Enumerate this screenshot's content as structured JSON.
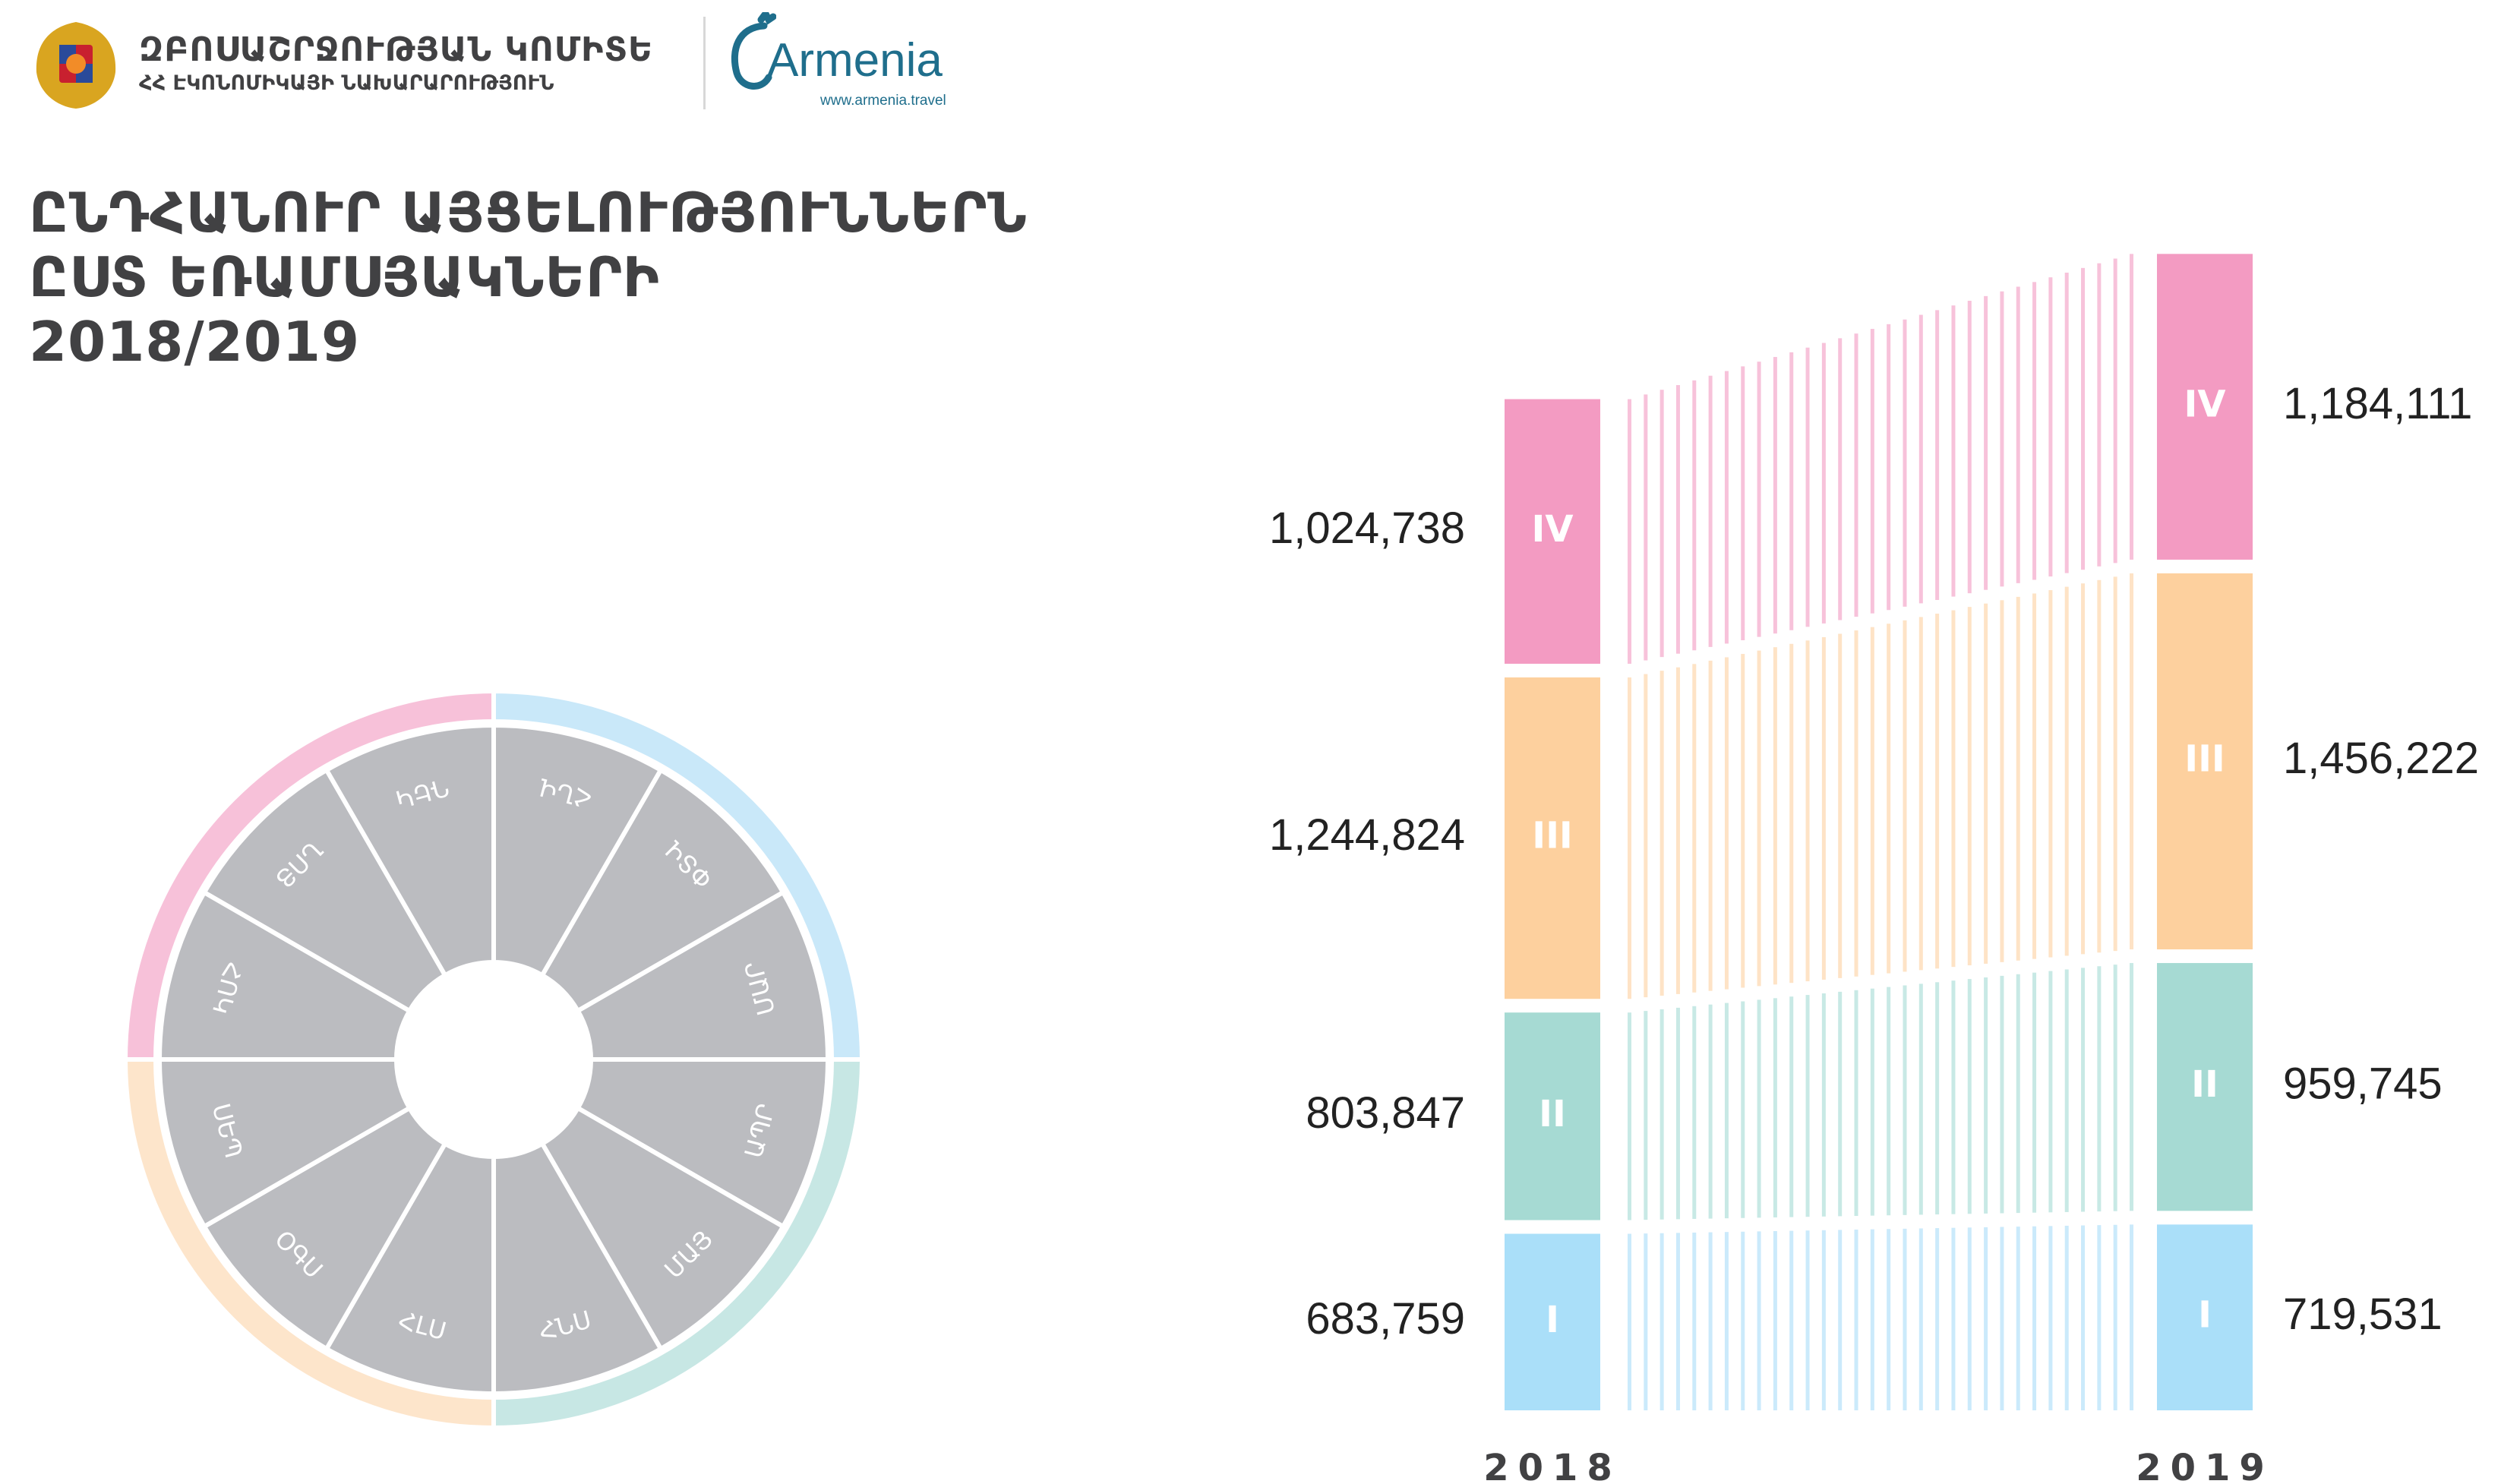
{
  "header": {
    "org_name": "ԶԲՈՍԱՇՐՋՈՒԹՅԱՆ ԿՈՄԻՏԵ",
    "ministry": "ՀՀ ԷԿՈՆՈՄԻԿԱՅԻ ՆԱԽԱՐԱՐՈՒԹՅՈՒՆ",
    "logo_text": "Armenia",
    "logo_url": "www.armenia.travel"
  },
  "title": {
    "line1": "ԸՆԴՀԱՆՈՒՐ ԱՅՑԵԼՈՒԹՅՈՒՆՆԵՐՆ",
    "line2": "ԸՍՏ ԵՌԱՄՍՅԱԿՆԵՐԻ",
    "line3": "2018/2019"
  },
  "wheel": {
    "months": [
      "ՀՆՎ",
      "ՓՏՎ",
      "ՄԱՐ",
      "ԱՊՐ",
      "ՄԱՅ",
      "ՀՆՍ",
      "ՀԼՍ",
      "ՕԳՍ",
      "ՍԵՊ",
      "ՀՈԿ",
      "ՆՈՅ",
      "ԴԵԿ"
    ],
    "quarter_colors": [
      "#c9e8f9",
      "#c7e7e4",
      "#fde5cb",
      "#f7c1d9"
    ],
    "segment_color": "#bbbcc0"
  },
  "chart_data": {
    "type": "bar",
    "title": "ԸՆԴՀԱՆՈՒՐ ԱՅՑԵԼՈՒԹՅՈՒՆՆԵՐՆ ԸՍՏ ԵՌԱՄՍՅԱԿՆԵՐԻ 2018/2019",
    "stacked": true,
    "categories": [
      "2018",
      "2019"
    ],
    "series": [
      {
        "name": "I",
        "values": [
          683759,
          719531
        ],
        "labels": [
          "683,759",
          "719,531"
        ],
        "color": "#aadff9",
        "light": "#cbeafb"
      },
      {
        "name": "II",
        "values": [
          803847,
          959745
        ],
        "labels": [
          "803,847",
          "959,745"
        ],
        "color": "#a6dad3",
        "light": "#c8e9e5"
      },
      {
        "name": "III",
        "values": [
          1244824,
          1456222
        ],
        "labels": [
          "1,244,824",
          "1,456,222"
        ],
        "color": "#fdd09e",
        "light": "#fee3c6"
      },
      {
        "name": "IV",
        "values": [
          1024738,
          1184111
        ],
        "labels": [
          "1,024,738",
          "1,184,111"
        ],
        "color": "#f39bc2",
        "light": "#f7c2da"
      }
    ]
  }
}
